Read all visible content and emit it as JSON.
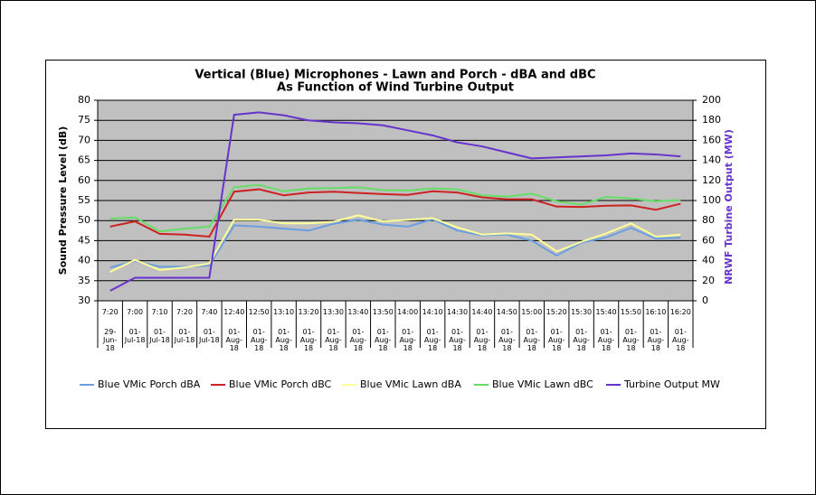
{
  "chart_data": {
    "type": "line",
    "title": "Vertical (Blue) Microphones - Lawn and Porch - dBA and dBC",
    "subtitle": "As Function of Wind Turbine Output",
    "y_label": "Sound Pressure Level (dB)",
    "y2_label": "NRWF Turbine Output (MW)",
    "categories": [
      [
        "7:20",
        "29-Jun-18"
      ],
      [
        "7:00",
        "01-Jul-18"
      ],
      [
        "7:10",
        "01-Jul-18"
      ],
      [
        "7:20",
        "01-Jul-18"
      ],
      [
        "7:40",
        "01-Jul-18"
      ],
      [
        "12:40",
        "01-Aug-18"
      ],
      [
        "12:50",
        "01-Aug-18"
      ],
      [
        "13:10",
        "01-Aug-18"
      ],
      [
        "13:20",
        "01-Aug-18"
      ],
      [
        "13:30",
        "01-Aug-18"
      ],
      [
        "13:40",
        "01-Aug-18"
      ],
      [
        "13:50",
        "01-Aug-18"
      ],
      [
        "14:00",
        "01-Aug-18"
      ],
      [
        "14:10",
        "01-Aug-18"
      ],
      [
        "14:30",
        "01-Aug-18"
      ],
      [
        "14:40",
        "01-Aug-18"
      ],
      [
        "14:50",
        "01-Aug-18"
      ],
      [
        "15:00",
        "01-Aug-18"
      ],
      [
        "15:20",
        "01-Aug-18"
      ],
      [
        "15:30",
        "01-Aug-18"
      ],
      [
        "15:40",
        "01-Aug-18"
      ],
      [
        "15:50",
        "01-Aug-18"
      ],
      [
        "16:10",
        "01-Aug-18"
      ],
      [
        "16:20",
        "01-Aug-18"
      ]
    ],
    "series": [
      {
        "name": "Blue VMic Porch dBA",
        "color": "#6a9ee0",
        "values": [
          38.3,
          39.9,
          38.5,
          38.5,
          38.8,
          48.8,
          48.5,
          48,
          47.5,
          49.2,
          50.2,
          49,
          48.5,
          50.3,
          47.5,
          46.3,
          46.5,
          45,
          41.3,
          44.5,
          45.8,
          48.2,
          45.5,
          45.7
        ]
      },
      {
        "name": "Blue VMic Porch dBC",
        "color": "#cc2222",
        "values": [
          48.5,
          49.8,
          46.7,
          46.5,
          46,
          57.2,
          57.8,
          56.3,
          57,
          57.2,
          56.9,
          56.6,
          56.4,
          57.3,
          57,
          55.8,
          55.3,
          55.3,
          53.5,
          53.4,
          53.7,
          53.8,
          52.7,
          54.2
        ]
      },
      {
        "name": "Blue VMic Lawn dBA",
        "color": "#ffff99",
        "values": [
          37.2,
          40.2,
          37.7,
          38.3,
          39.3,
          50.2,
          50.2,
          49.3,
          49.3,
          49.7,
          51.3,
          49.8,
          50.2,
          50.6,
          48.3,
          46.5,
          46.8,
          46.5,
          42.3,
          44.7,
          46.8,
          49.3,
          46,
          46.5
        ]
      },
      {
        "name": "Blue VMic Lawn dBC",
        "color": "#66dd66",
        "values": [
          50.5,
          50.8,
          47.3,
          48,
          48.5,
          58.3,
          58.9,
          57.3,
          58,
          58.1,
          58.3,
          57.6,
          57.5,
          58,
          57.8,
          56.3,
          56,
          56.7,
          54.8,
          54,
          55.9,
          55.5,
          54.8,
          55.1
        ]
      },
      {
        "name": "Turbine Output MW",
        "color": "#6633cc",
        "axis": "y2",
        "values": [
          10,
          23,
          23,
          23,
          23,
          185.5,
          188,
          185,
          180,
          178,
          177,
          175,
          170,
          165,
          158,
          154,
          148,
          142,
          143,
          144,
          145,
          147,
          146,
          144
        ]
      }
    ],
    "ylim": [
      30,
      80
    ],
    "yticks": [
      30,
      35,
      40,
      45,
      50,
      55,
      60,
      65,
      70,
      75,
      80
    ],
    "y2lim": [
      0,
      200
    ],
    "y2ticks": [
      0,
      20,
      40,
      60,
      80,
      100,
      120,
      140,
      160,
      180,
      200
    ],
    "grid": true,
    "plot_background": "#c0c0c0",
    "legend": "bottom"
  }
}
